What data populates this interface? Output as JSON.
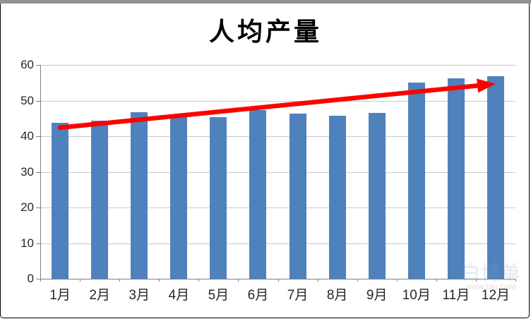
{
  "chart_data": {
    "type": "bar",
    "title": "人均产量",
    "categories": [
      "1月",
      "2月",
      "3月",
      "4月",
      "5月",
      "6月",
      "7月",
      "8月",
      "9月",
      "10月",
      "11月",
      "12月"
    ],
    "values": [
      43.8,
      44.4,
      46.7,
      45.9,
      45.3,
      47.4,
      46.3,
      45.8,
      46.6,
      55.1,
      56.3,
      56.8
    ],
    "xlabel": "",
    "ylabel": "",
    "ylim": [
      0,
      60
    ],
    "yticks": [
      0,
      10,
      20,
      30,
      40,
      50,
      60
    ],
    "grid": "horizontal",
    "legend": "none",
    "bar_color": "#4f81bd",
    "gridline_color": "#c9c9c9",
    "axis_color": "#808080",
    "annotations": [
      {
        "type": "trend-arrow",
        "color": "#fe0000",
        "from": {
          "category": "1月",
          "value": 42.4
        },
        "to": {
          "category": "12月",
          "value": 54.7
        }
      }
    ]
  },
  "watermark": {
    "logo_text": "白博单",
    "url_text": "www.blg.com"
  }
}
